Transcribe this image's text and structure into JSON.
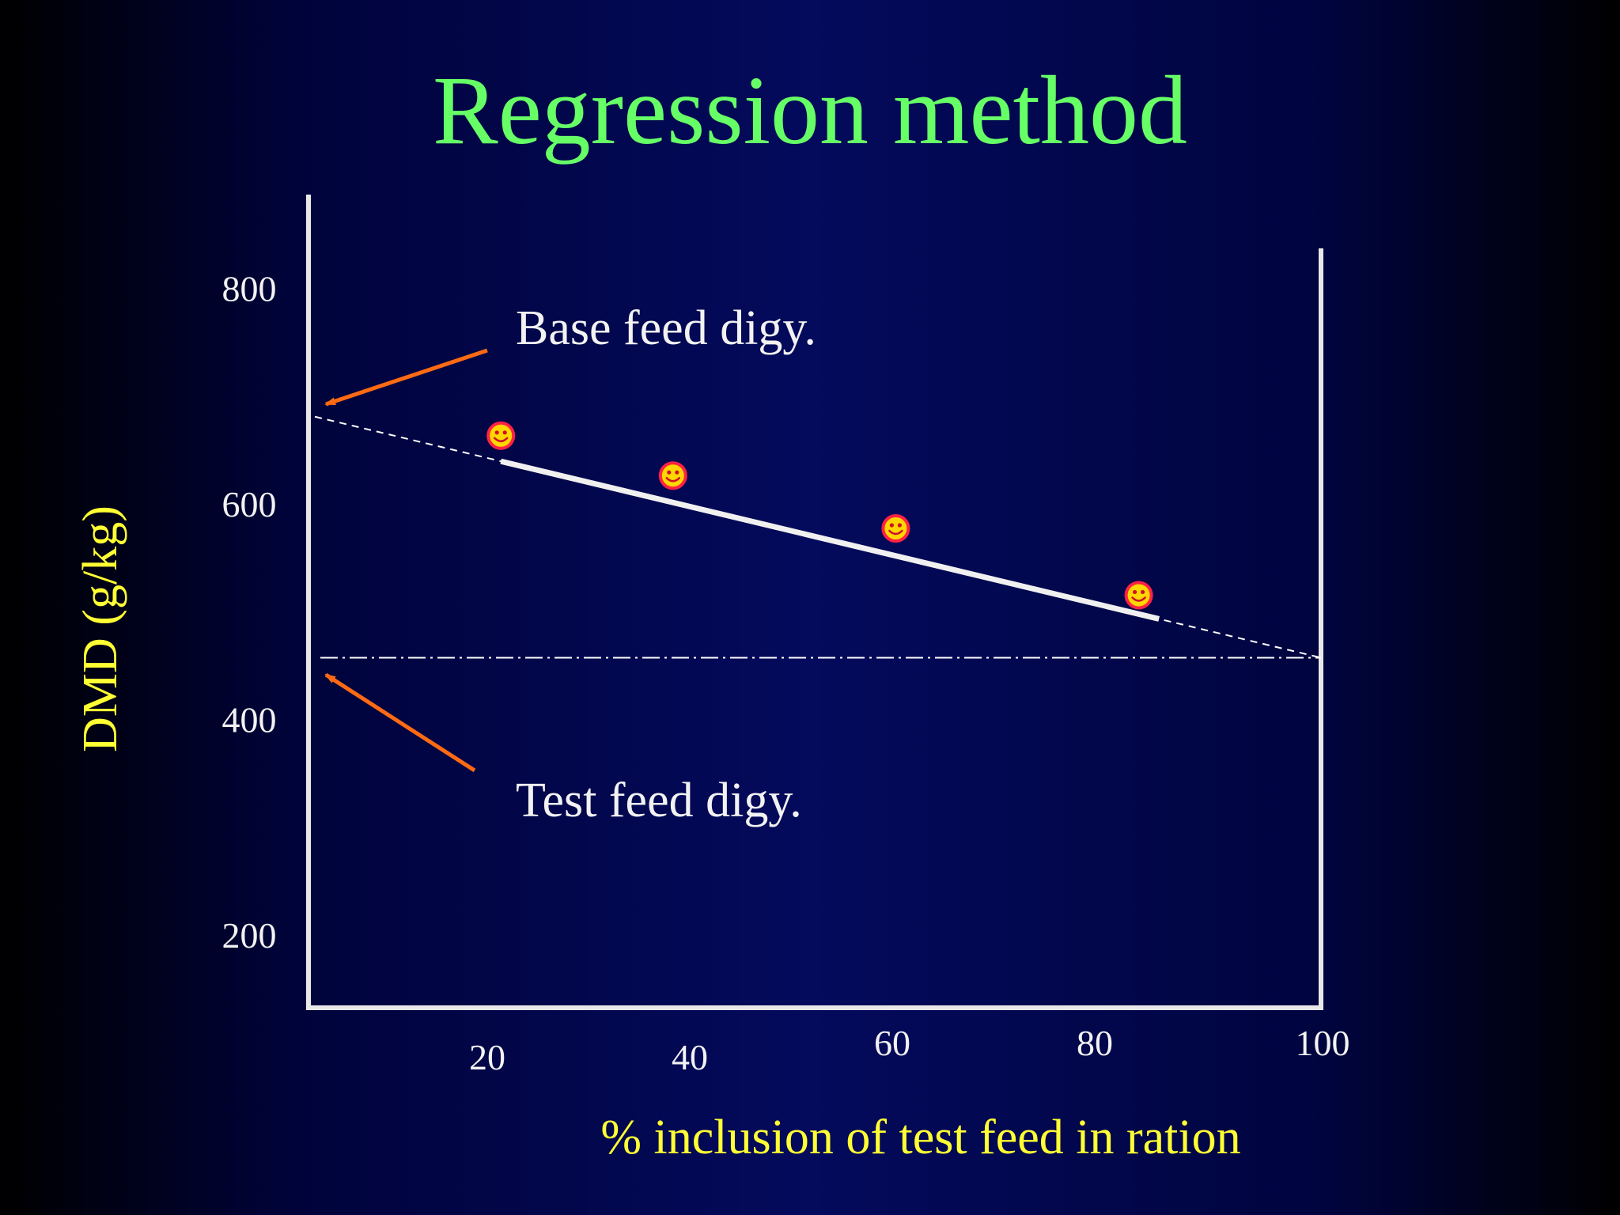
{
  "slide": {
    "title": "Regression method"
  },
  "colors": {
    "title": "#66ff66",
    "axis_label": "#ffff33",
    "axis": "#e8e8e8",
    "arrow": "#ff6a13",
    "point_face": "#ffd700",
    "point_edge": "#ff2244"
  },
  "chart_data": {
    "type": "scatter",
    "title": "Regression method",
    "xlabel": "% inclusion of test feed in ration",
    "ylabel": "DMD (g/kg)",
    "x_ticks": [
      {
        "value": 20,
        "label": "20"
      },
      {
        "value": 40,
        "label": "40"
      },
      {
        "value": 60,
        "label": "60"
      },
      {
        "value": 80,
        "label": "80"
      },
      {
        "value": 100,
        "label": "100"
      }
    ],
    "y_ticks": [
      {
        "value": 200,
        "label": "200"
      },
      {
        "value": 400,
        "label": "400"
      },
      {
        "value": 600,
        "label": "600"
      },
      {
        "value": 800,
        "label": "800"
      }
    ],
    "points": [
      {
        "x": 19,
        "y": 664
      },
      {
        "x": 36,
        "y": 627
      },
      {
        "x": 58,
        "y": 578
      },
      {
        "x": 82,
        "y": 516
      }
    ],
    "point_marker": "smiley-face-icon",
    "regression_line": {
      "x_start": 0,
      "y_start": 683,
      "x_end": 100,
      "y_end": 458
    },
    "fitted_segment": {
      "x_start": 19,
      "x_end": 84
    },
    "reference_line": {
      "y": 458,
      "style": "dash-dot"
    },
    "annotations": [
      {
        "text": "Base feed digy.",
        "points_to": "y-intercept at 0% inclusion"
      },
      {
        "text": "Test feed digy.",
        "points_to": "extrapolated value at 100% inclusion"
      }
    ],
    "grid": false,
    "legend": "none"
  }
}
